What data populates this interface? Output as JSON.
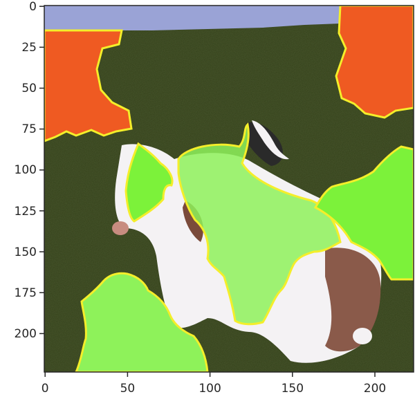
{
  "figure": {
    "description_for_agent": "",
    "x_ticks": [
      "0",
      "50",
      "100",
      "150",
      "200"
    ],
    "y_ticks": [
      "0",
      "25",
      "50",
      "75",
      "100",
      "125",
      "150",
      "175",
      "200"
    ],
    "x_range": [
      0,
      224
    ],
    "y_range": [
      0,
      224
    ],
    "colors": {
      "background_dark_green": "#34411a",
      "sky_lavender": "#9aa3d6",
      "segment_orange": "#ef5a22",
      "segment_lime": "#7cf23a",
      "segment_light_green": "#8ef25a",
      "boundary_yellow": "#f4ee2a",
      "animal_white": "#f4f2f4",
      "animal_brown": "#8a5a4a"
    }
  }
}
